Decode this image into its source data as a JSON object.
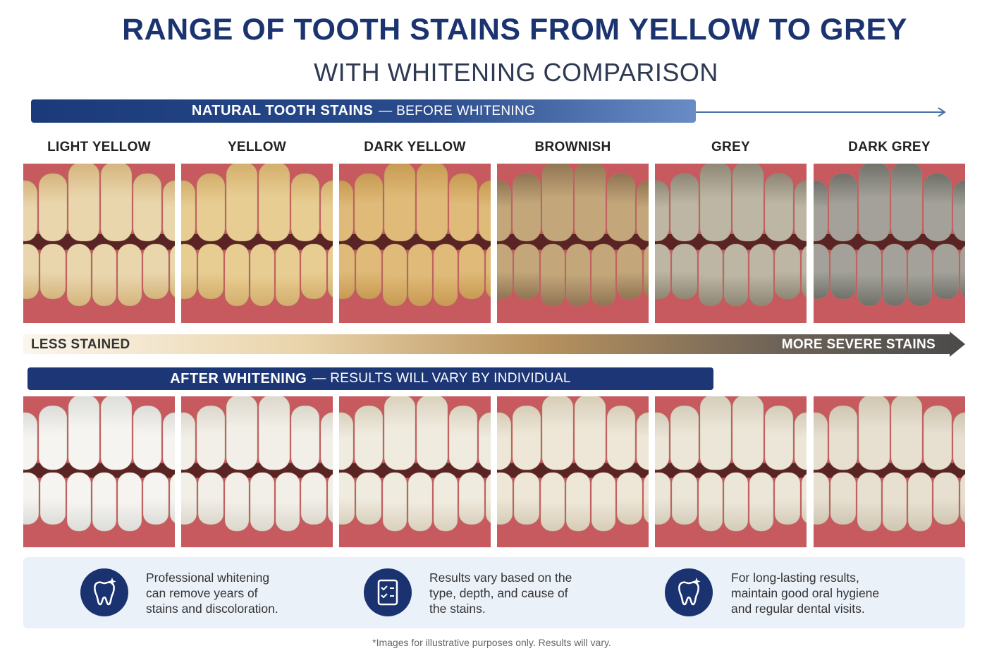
{
  "header": {
    "title": "RANGE OF TOOTH STAINS FROM YELLOW TO GREY",
    "subtitle": "WITH WHITENING COMPARISON"
  },
  "before_banner": {
    "label": "NATURAL TOOTH STAINS",
    "note": "— BEFORE WHITENING"
  },
  "stains": [
    "LIGHT YELLOW",
    "YELLOW",
    "DARK YELLOW",
    "BROWNISH",
    "GREY",
    "DARK GREY"
  ],
  "scale": {
    "start": "LESS STAINED",
    "end": "MORE SEVERE STAINS"
  },
  "after_banner": {
    "label": "AFTER WHITENING",
    "note": "— RESULTS WILL VARY BY INDIVIDUAL"
  },
  "notes": [
    "Professional whitening can remove years of stains and discoloration.",
    "Results vary based on the type, depth, and cause of the stains.",
    "For long-lasting results, maintain good oral hygiene and regular dental visits."
  ],
  "footnote": "*Images for illustrative purposes only. Results will vary."
}
